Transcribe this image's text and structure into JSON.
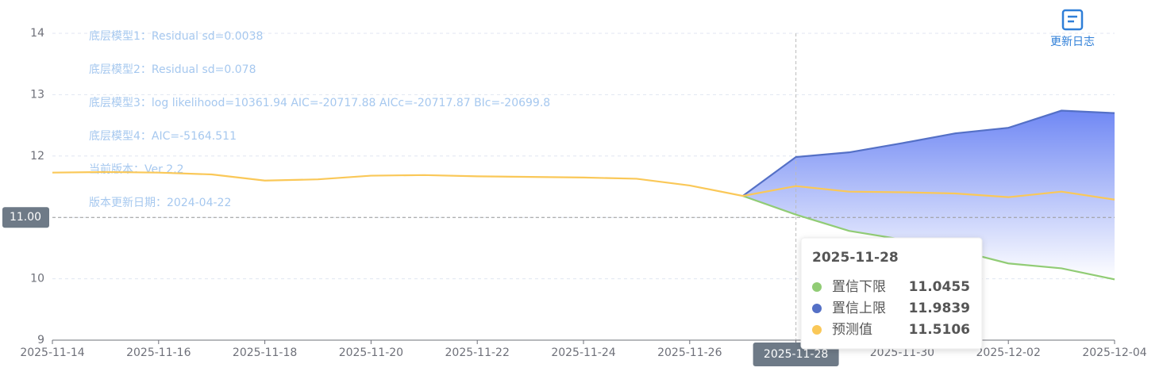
{
  "chart_data": {
    "type": "line",
    "annotations": [
      "底层模型1：Residual sd=0.0038",
      "底层模型2：Residual sd=0.078",
      "底层模型3：log likelihood=10361.94 AIC=-20717.88 AICc=-20717.87 BIc=-20699.8",
      "底层模型4：AIC=-5164.511",
      "当前版本：Ver 2.2",
      "版本更新日期：2024-04-22"
    ],
    "changelog_button": "更新日志",
    "categories": [
      "2025-11-14",
      null,
      "2025-11-16",
      null,
      "2025-11-18",
      null,
      "2025-11-20",
      null,
      "2025-11-22",
      null,
      "2025-11-24",
      null,
      "2025-11-26",
      null,
      "2025-11-28",
      null,
      "2025-11-30",
      null,
      "2025-12-02",
      null,
      "2025-12-04"
    ],
    "series": [
      {
        "name": "置信下限",
        "color": "#91cc75",
        "values": [
          null,
          null,
          null,
          null,
          null,
          null,
          null,
          null,
          null,
          null,
          null,
          null,
          null,
          11.35,
          11.0455,
          10.78,
          10.64,
          10.47,
          10.25,
          10.17,
          9.99
        ]
      },
      {
        "name": "置信上限",
        "color": "#5470c6",
        "values": [
          null,
          null,
          null,
          null,
          null,
          null,
          null,
          null,
          null,
          null,
          null,
          null,
          null,
          11.35,
          11.9839,
          12.06,
          12.21,
          12.37,
          12.46,
          12.74,
          12.7
        ]
      },
      {
        "name": "预测值",
        "color": "#fac858",
        "values": [
          11.73,
          11.74,
          11.73,
          11.7,
          11.6,
          11.62,
          11.68,
          11.69,
          11.67,
          11.66,
          11.65,
          11.63,
          11.52,
          11.35,
          11.5106,
          11.42,
          11.41,
          11.39,
          11.33,
          11.42,
          11.29
        ]
      }
    ],
    "ylim": [
      9,
      14
    ],
    "yticks": [
      9,
      10,
      11,
      12,
      13,
      14
    ],
    "grid": true,
    "y_pointer": {
      "value": 11,
      "label": "11.00"
    },
    "x_pointer": "2025-11-28",
    "tooltip": {
      "date": "2025-11-28"
    }
  }
}
